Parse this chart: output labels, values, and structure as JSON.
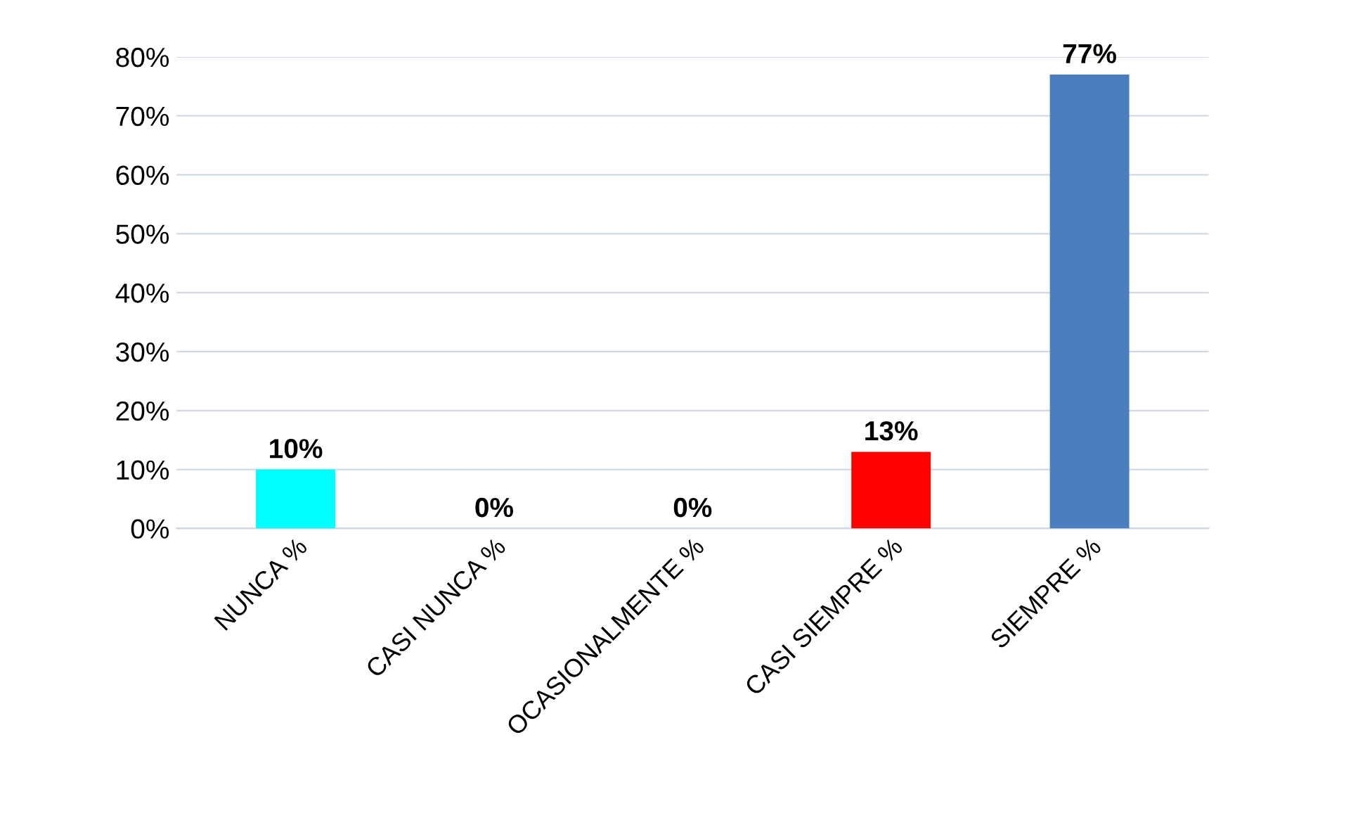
{
  "chart_data": {
    "type": "bar",
    "categories": [
      "NUNCA %",
      "CASI NUNCA %",
      "OCASIONALMENTE %",
      "CASI SIEMPRE %",
      "SIEMPRE %"
    ],
    "values": [
      10,
      0,
      0,
      13,
      77
    ],
    "colors": [
      "#00ffff",
      "#000000",
      "#c8c400",
      "#ff0000",
      "#4a7ebf"
    ],
    "value_labels": [
      "10%",
      "0%",
      "0%",
      "13%",
      "77%"
    ],
    "ylim": [
      0,
      80
    ],
    "yticks": [
      {
        "value": 0,
        "label": "0%"
      },
      {
        "value": 10,
        "label": "10%"
      },
      {
        "value": 20,
        "label": "20%"
      },
      {
        "value": 30,
        "label": "30%"
      },
      {
        "value": 40,
        "label": "40%"
      },
      {
        "value": 50,
        "label": "50%"
      },
      {
        "value": 60,
        "label": "60%"
      },
      {
        "value": 70,
        "label": "70%"
      },
      {
        "value": 80,
        "label": "80%"
      }
    ],
    "grid": "y"
  }
}
